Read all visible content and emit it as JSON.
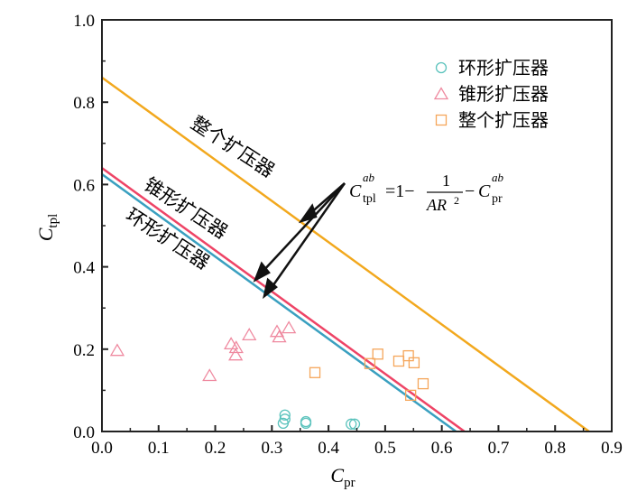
{
  "chart_data": {
    "type": "scatter",
    "xlabel": {
      "main": "C",
      "sub": "pr"
    },
    "ylabel": {
      "main": "C",
      "sub": "tpl"
    },
    "xlim": [
      0,
      0.9
    ],
    "ylim": [
      0,
      1.0
    ],
    "xticks": [
      "0.0",
      "0.1",
      "0.2",
      "0.3",
      "0.4",
      "0.5",
      "0.6",
      "0.7",
      "0.8",
      "0.9"
    ],
    "yticks": [
      "0.0",
      "0.2",
      "0.4",
      "0.6",
      "0.8",
      "1.0"
    ],
    "legend_position": "top-right",
    "series": [
      {
        "name": "环形扩压器",
        "marker": "circle",
        "color": "#5cc3bd",
        "line_color": "#3aa0c0",
        "line_intercept": 0.625,
        "points": [
          [
            0.323,
            0.04
          ],
          [
            0.323,
            0.03
          ],
          [
            0.32,
            0.02
          ],
          [
            0.36,
            0.024
          ],
          [
            0.36,
            0.02
          ],
          [
            0.44,
            0.018
          ],
          [
            0.446,
            0.018
          ]
        ]
      },
      {
        "name": "锥形扩压器",
        "marker": "triangle",
        "color": "#ef8aa0",
        "line_color": "#ee4466",
        "line_intercept": 0.64,
        "points": [
          [
            0.027,
            0.197
          ],
          [
            0.19,
            0.136
          ],
          [
            0.228,
            0.213
          ],
          [
            0.237,
            0.204
          ],
          [
            0.236,
            0.186
          ],
          [
            0.26,
            0.235
          ],
          [
            0.309,
            0.243
          ],
          [
            0.313,
            0.23
          ],
          [
            0.33,
            0.252
          ]
        ]
      },
      {
        "name": "整个扩压器",
        "marker": "square",
        "color": "#f5a65b",
        "line_color": "#f2a81d",
        "line_intercept": 0.86,
        "points": [
          [
            0.376,
            0.143
          ],
          [
            0.473,
            0.165
          ],
          [
            0.487,
            0.188
          ],
          [
            0.524,
            0.171
          ],
          [
            0.541,
            0.184
          ],
          [
            0.551,
            0.167
          ],
          [
            0.567,
            0.116
          ],
          [
            0.545,
            0.088
          ]
        ]
      }
    ],
    "line_labels": [
      "整个扩压器",
      "锥形扩压器",
      "环形扩压器"
    ],
    "annotation": {
      "lhs": "C",
      "lhs_sub": "tpl",
      "lhs_sup": "ab",
      "eq": "=1−",
      "num": "1",
      "den": "AR",
      "den_sup": "2",
      "minus": "−",
      "rhs": "C",
      "rhs_sub": "pr",
      "rhs_sup": "ab"
    }
  }
}
